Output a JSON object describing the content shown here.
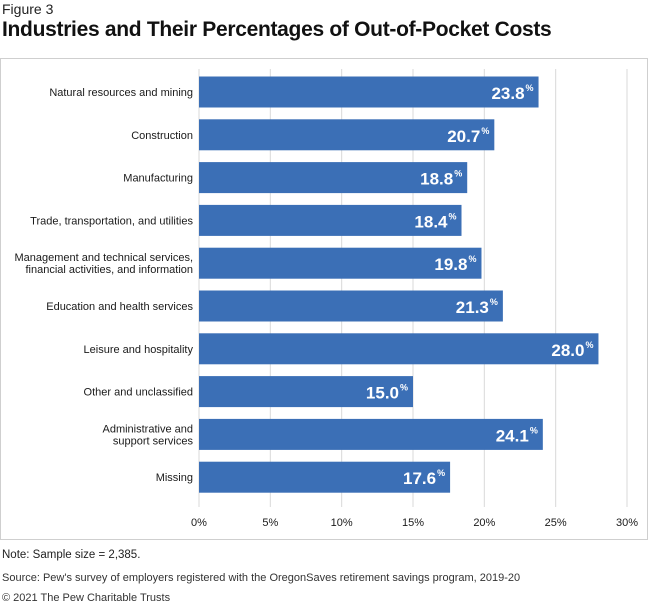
{
  "figure_label": "Figure 3",
  "title": "Industries and Their Percentages of Out-of-Pocket Costs",
  "note": "Note: Sample size = 2,385.",
  "source": "Source: Pew's survey of employers registered with the OregonSaves retirement savings program, 2019-20",
  "copyright": "© 2021 The Pew Charitable Trusts",
  "chart_data": {
    "type": "bar",
    "orientation": "horizontal",
    "categories": [
      [
        "Natural resources and mining"
      ],
      [
        "Construction"
      ],
      [
        "Manufacturing"
      ],
      [
        "Trade, transportation, and utilities"
      ],
      [
        "Management and technical services,",
        "financial activities, and information"
      ],
      [
        "Education and health services"
      ],
      [
        "Leisure and hospitality"
      ],
      [
        "Other and unclassified"
      ],
      [
        "Administrative and",
        "support services"
      ],
      [
        "Missing"
      ]
    ],
    "values": [
      23.8,
      20.7,
      18.8,
      18.4,
      19.8,
      21.3,
      28.0,
      15.0,
      24.1,
      17.6
    ],
    "value_labels": [
      "23.8",
      "20.7",
      "18.8",
      "18.4",
      "19.8",
      "21.3",
      "28.0",
      "15.0",
      "24.1",
      "17.6"
    ],
    "value_unit": "%",
    "x_ticks": [
      0,
      5,
      10,
      15,
      20,
      25,
      30
    ],
    "x_tick_labels": [
      "0%",
      "5%",
      "10%",
      "15%",
      "20%",
      "25%",
      "30%"
    ],
    "xlim": [
      0,
      30
    ],
    "grid": true,
    "bar_color": "#3b6fb6",
    "grid_color": "#d9d9d9"
  }
}
